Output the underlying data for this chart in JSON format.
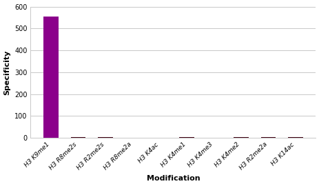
{
  "categories": [
    "H3 K9me1",
    "H3 R8me2s",
    "H3 R2me2s",
    "H3 R8me2a",
    "H3 K4ac",
    "H3 K4me1",
    "H3 K4me3",
    "H3 K4me2",
    "H3 R2me2a",
    "H3 K14ac"
  ],
  "values": [
    553,
    3,
    3,
    2,
    2,
    3,
    2,
    3,
    5,
    4
  ],
  "bar_colors": [
    "#8B008B",
    "#3D0010",
    "#3D0010",
    "#3D0010",
    "#3D0010",
    "#3D0010",
    "#3D0010",
    "#3D0010",
    "#3D0010",
    "#3D0010"
  ],
  "xlabel": "Modification",
  "ylabel": "Specificity",
  "ylim": [
    0,
    600
  ],
  "yticks": [
    0,
    100,
    200,
    300,
    400,
    500,
    600
  ],
  "bar_width": 0.55,
  "background_color": "#ffffff",
  "grid_color": "#c8c8c8",
  "xlabel_fontsize": 8,
  "ylabel_fontsize": 8,
  "tick_fontsize": 7,
  "label_fontsize": 6.5
}
